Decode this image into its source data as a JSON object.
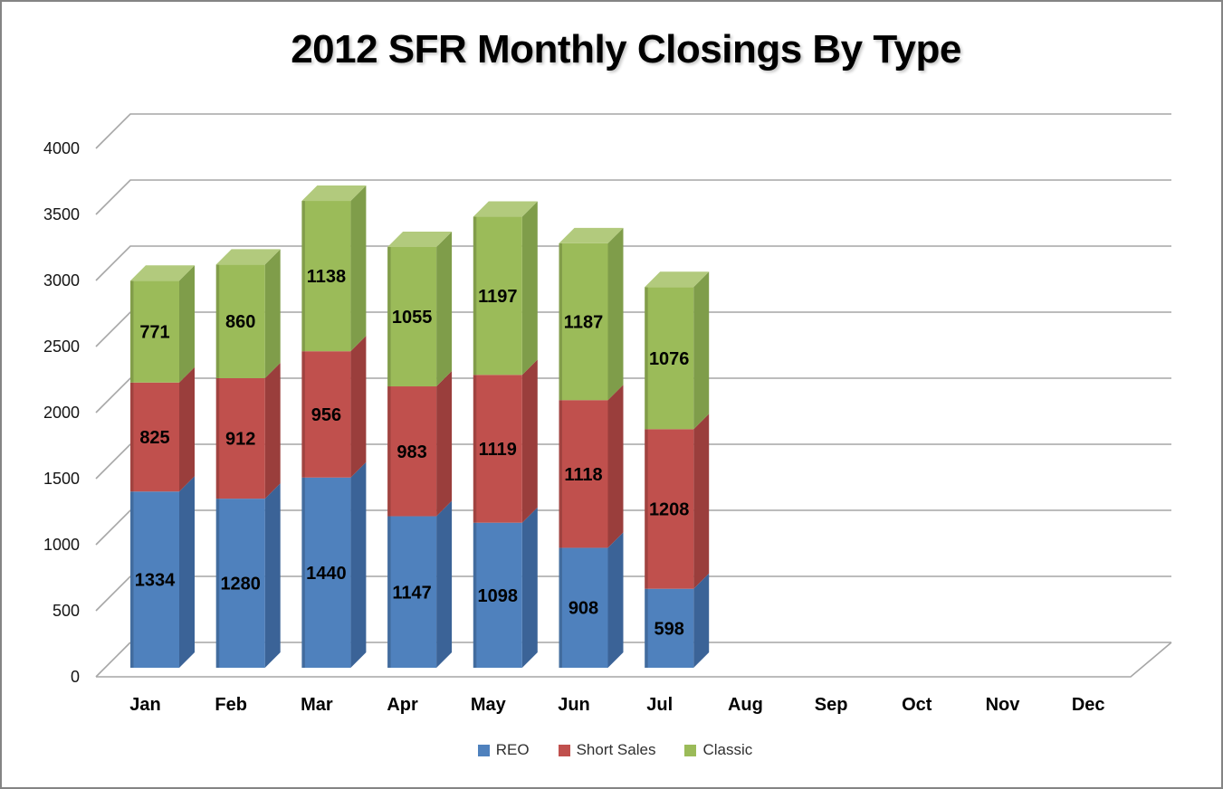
{
  "title": "2012 SFR Monthly Closings By Type",
  "chart_data": {
    "type": "bar",
    "subtype": "stacked-3d",
    "title": "2012 SFR Monthly Closings By Type",
    "xlabel": "",
    "ylabel": "",
    "categories": [
      "Jan",
      "Feb",
      "Mar",
      "Apr",
      "May",
      "Jun",
      "Jul",
      "Aug",
      "Sep",
      "Oct",
      "Nov",
      "Dec"
    ],
    "series": [
      {
        "name": "REO",
        "color": "#4F81BD",
        "side_color": "#3B6397",
        "top_color": "#729ECE",
        "values": [
          1334,
          1280,
          1440,
          1147,
          1098,
          908,
          598,
          null,
          null,
          null,
          null,
          null
        ]
      },
      {
        "name": "Short Sales",
        "color": "#C0504D",
        "side_color": "#9A3E3C",
        "top_color": "#D07472",
        "values": [
          825,
          912,
          956,
          983,
          1119,
          1118,
          1208,
          null,
          null,
          null,
          null,
          null
        ]
      },
      {
        "name": "Classic",
        "color": "#9BBB59",
        "side_color": "#7F9D4A",
        "top_color": "#B2CA7D",
        "values": [
          771,
          860,
          1138,
          1055,
          1197,
          1187,
          1076,
          null,
          null,
          null,
          null,
          null
        ]
      }
    ],
    "totals_by_month": [
      2930,
      3052,
      3534,
      3185,
      3414,
      3213,
      2882,
      null,
      null,
      null,
      null,
      null
    ],
    "data_labels": true,
    "y_ticks": [
      0,
      500,
      1000,
      1500,
      2000,
      2500,
      3000,
      3500,
      4000
    ],
    "ylim": [
      0,
      4000
    ],
    "grid": true,
    "gridline_color": "#A6A6A6",
    "legend_position": "bottom"
  }
}
